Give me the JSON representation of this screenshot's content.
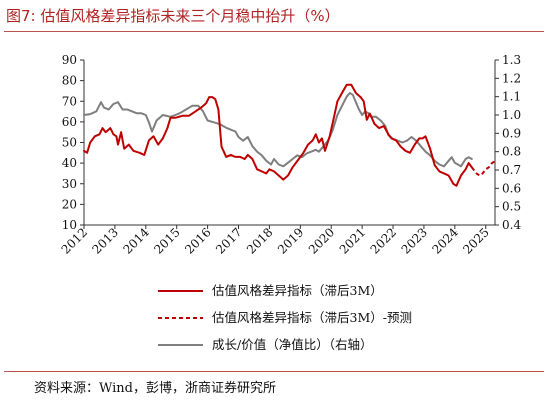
{
  "figure": {
    "title": "图7:   估值风格差异指标未来三个月稳中抬升（%）",
    "source": "资料来源：Wind，彭博，浙商证券研究所"
  },
  "chart_data": {
    "type": "line",
    "x_ticks": [
      "2012",
      "2013",
      "2014",
      "2015",
      "2016",
      "2017",
      "2018",
      "2019",
      "2020",
      "2021",
      "2022",
      "2023",
      "2024",
      "2025"
    ],
    "y_left": {
      "ticks": [
        "90",
        "80",
        "70",
        "60",
        "50",
        "40",
        "30",
        "20",
        "10"
      ],
      "range": [
        10,
        90
      ]
    },
    "y_right": {
      "ticks": [
        "1.3",
        "1.2",
        "1.1",
        "1.0",
        "0.9",
        "0.8",
        "0.7",
        "0.6",
        "0.5",
        "0.4"
      ],
      "range": [
        0.4,
        1.3
      ]
    },
    "grid": false,
    "legend_position": "bottom",
    "colors": {
      "valuation": "#c00000",
      "forecast": "#c00000",
      "growth_value": "#7f7f7f"
    },
    "series": [
      {
        "name": "估值风格差异指标（滞后3M）",
        "axis": "left",
        "style": "solid",
        "points": [
          [
            2012.0,
            46
          ],
          [
            2012.1,
            45
          ],
          [
            2012.2,
            50
          ],
          [
            2012.35,
            53
          ],
          [
            2012.5,
            54
          ],
          [
            2012.6,
            57
          ],
          [
            2012.7,
            55
          ],
          [
            2012.85,
            57
          ],
          [
            2012.95,
            54
          ],
          [
            2013.05,
            53
          ],
          [
            2013.1,
            49
          ],
          [
            2013.2,
            55
          ],
          [
            2013.3,
            47
          ],
          [
            2013.45,
            49
          ],
          [
            2013.6,
            46
          ],
          [
            2013.8,
            45
          ],
          [
            2013.95,
            44
          ],
          [
            2014.1,
            51
          ],
          [
            2014.25,
            53
          ],
          [
            2014.4,
            49
          ],
          [
            2014.55,
            52
          ],
          [
            2014.7,
            57
          ],
          [
            2014.8,
            62
          ],
          [
            2014.95,
            62
          ],
          [
            2015.2,
            63
          ],
          [
            2015.4,
            63
          ],
          [
            2015.6,
            65
          ],
          [
            2015.8,
            67
          ],
          [
            2015.95,
            69
          ],
          [
            2016.05,
            72
          ],
          [
            2016.15,
            72
          ],
          [
            2016.25,
            71
          ],
          [
            2016.35,
            66
          ],
          [
            2016.45,
            48
          ],
          [
            2016.6,
            43
          ],
          [
            2016.75,
            44
          ],
          [
            2016.9,
            43
          ],
          [
            2017.05,
            43
          ],
          [
            2017.2,
            42
          ],
          [
            2017.3,
            44
          ],
          [
            2017.45,
            42
          ],
          [
            2017.6,
            37
          ],
          [
            2017.75,
            36
          ],
          [
            2017.9,
            35
          ],
          [
            2018.0,
            37
          ],
          [
            2018.15,
            36
          ],
          [
            2018.3,
            34
          ],
          [
            2018.45,
            32
          ],
          [
            2018.6,
            34
          ],
          [
            2018.75,
            38
          ],
          [
            2018.9,
            41
          ],
          [
            2019.1,
            45
          ],
          [
            2019.25,
            49
          ],
          [
            2019.4,
            51
          ],
          [
            2019.5,
            54
          ],
          [
            2019.6,
            50
          ],
          [
            2019.7,
            52
          ],
          [
            2019.8,
            46
          ],
          [
            2019.95,
            53
          ],
          [
            2020.1,
            63
          ],
          [
            2020.2,
            70
          ],
          [
            2020.35,
            74
          ],
          [
            2020.5,
            78
          ],
          [
            2020.65,
            78
          ],
          [
            2020.8,
            74
          ],
          [
            2020.95,
            72
          ],
          [
            2021.05,
            70
          ],
          [
            2021.15,
            61
          ],
          [
            2021.25,
            64
          ],
          [
            2021.4,
            59
          ],
          [
            2021.55,
            57
          ],
          [
            2021.7,
            58
          ],
          [
            2021.85,
            54
          ],
          [
            2021.95,
            52
          ],
          [
            2022.1,
            51
          ],
          [
            2022.25,
            48
          ],
          [
            2022.4,
            46
          ],
          [
            2022.55,
            45
          ],
          [
            2022.7,
            49
          ],
          [
            2022.85,
            52
          ],
          [
            2022.95,
            52
          ],
          [
            2023.05,
            53
          ],
          [
            2023.2,
            47
          ],
          [
            2023.35,
            39
          ],
          [
            2023.5,
            36
          ],
          [
            2023.65,
            35
          ],
          [
            2023.8,
            34
          ],
          [
            2023.95,
            30
          ],
          [
            2024.05,
            29
          ],
          [
            2024.2,
            34
          ],
          [
            2024.35,
            37
          ],
          [
            2024.45,
            40
          ],
          [
            2024.55,
            38
          ]
        ]
      },
      {
        "name": "估值风格差异指标（滞后3M）-预测",
        "axis": "left",
        "style": "dashed",
        "points": [
          [
            2024.55,
            38
          ],
          [
            2024.7,
            35
          ],
          [
            2024.8,
            34
          ],
          [
            2024.9,
            35
          ],
          [
            2025.0,
            37
          ],
          [
            2025.1,
            38
          ],
          [
            2025.2,
            40
          ],
          [
            2025.3,
            41
          ]
        ]
      },
      {
        "name": "成长/价值（净值比）（右轴）",
        "axis": "right",
        "style": "solid",
        "points": [
          [
            2012.0,
            1.0
          ],
          [
            2012.2,
            1.005
          ],
          [
            2012.4,
            1.02
          ],
          [
            2012.55,
            1.07
          ],
          [
            2012.65,
            1.04
          ],
          [
            2012.8,
            1.03
          ],
          [
            2012.95,
            1.06
          ],
          [
            2013.1,
            1.07
          ],
          [
            2013.25,
            1.03
          ],
          [
            2013.4,
            1.03
          ],
          [
            2013.55,
            1.02
          ],
          [
            2013.7,
            1.01
          ],
          [
            2013.85,
            1.01
          ],
          [
            2014.0,
            1.0
          ],
          [
            2014.1,
            0.96
          ],
          [
            2014.2,
            0.91
          ],
          [
            2014.35,
            0.97
          ],
          [
            2014.55,
            1.0
          ],
          [
            2014.8,
            0.99
          ],
          [
            2014.95,
            1.0
          ],
          [
            2015.1,
            1.01
          ],
          [
            2015.3,
            1.03
          ],
          [
            2015.5,
            1.05
          ],
          [
            2015.7,
            1.05
          ],
          [
            2015.85,
            1.02
          ],
          [
            2016.0,
            0.97
          ],
          [
            2016.2,
            0.96
          ],
          [
            2016.4,
            0.95
          ],
          [
            2016.6,
            0.93
          ],
          [
            2016.75,
            0.92
          ],
          [
            2016.9,
            0.91
          ],
          [
            2017.0,
            0.88
          ],
          [
            2017.15,
            0.86
          ],
          [
            2017.3,
            0.88
          ],
          [
            2017.45,
            0.83
          ],
          [
            2017.6,
            0.8
          ],
          [
            2017.75,
            0.78
          ],
          [
            2017.9,
            0.75
          ],
          [
            2018.05,
            0.73
          ],
          [
            2018.15,
            0.76
          ],
          [
            2018.3,
            0.73
          ],
          [
            2018.45,
            0.72
          ],
          [
            2018.6,
            0.74
          ],
          [
            2018.75,
            0.76
          ],
          [
            2018.9,
            0.78
          ],
          [
            2019.05,
            0.77
          ],
          [
            2019.2,
            0.79
          ],
          [
            2019.35,
            0.8
          ],
          [
            2019.5,
            0.81
          ],
          [
            2019.6,
            0.8
          ],
          [
            2019.75,
            0.83
          ],
          [
            2019.9,
            0.86
          ],
          [
            2020.05,
            0.92
          ],
          [
            2020.2,
            1.0
          ],
          [
            2020.35,
            1.05
          ],
          [
            2020.5,
            1.1
          ],
          [
            2020.6,
            1.12
          ],
          [
            2020.7,
            1.11
          ],
          [
            2020.8,
            1.07
          ],
          [
            2020.9,
            1.03
          ],
          [
            2021.0,
            1.0
          ],
          [
            2021.1,
            1.02
          ],
          [
            2021.2,
            1.01
          ],
          [
            2021.3,
            0.99
          ],
          [
            2021.45,
            0.99
          ],
          [
            2021.6,
            0.97
          ],
          [
            2021.75,
            0.94
          ],
          [
            2021.85,
            0.89
          ],
          [
            2022.0,
            0.87
          ],
          [
            2022.15,
            0.86
          ],
          [
            2022.3,
            0.85
          ],
          [
            2022.45,
            0.86
          ],
          [
            2022.6,
            0.88
          ],
          [
            2022.75,
            0.86
          ],
          [
            2022.9,
            0.83
          ],
          [
            2023.05,
            0.8
          ],
          [
            2023.2,
            0.78
          ],
          [
            2023.35,
            0.75
          ],
          [
            2023.5,
            0.73
          ],
          [
            2023.65,
            0.72
          ],
          [
            2023.8,
            0.75
          ],
          [
            2023.9,
            0.77
          ],
          [
            2024.0,
            0.74
          ],
          [
            2024.1,
            0.73
          ],
          [
            2024.2,
            0.72
          ],
          [
            2024.35,
            0.76
          ],
          [
            2024.45,
            0.77
          ],
          [
            2024.55,
            0.76
          ]
        ]
      }
    ]
  }
}
